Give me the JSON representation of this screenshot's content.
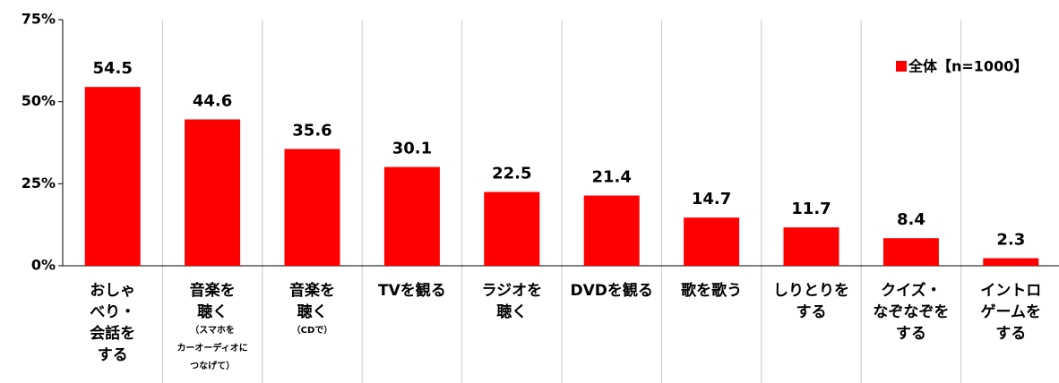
{
  "chart_data": {
    "type": "bar",
    "categories": [
      [
        "おしゃ",
        "べり・",
        "会話を",
        "する"
      ],
      [
        "音楽を",
        "聴く"
      ],
      [
        "音楽を",
        "聴く"
      ],
      [
        "TVを観る"
      ],
      [
        "ラジオを",
        "聴く"
      ],
      [
        "DVDを観る"
      ],
      [
        "歌を歌う"
      ],
      [
        "しりとりを",
        "する"
      ],
      [
        "クイズ・",
        "なぞなぞを",
        "する"
      ],
      [
        "イントロ",
        "ゲームを",
        "する"
      ]
    ],
    "category_notes": [
      null,
      [
        "（スマホを",
        "カーオーディオに",
        "つなげて）"
      ],
      [
        "（CDで）"
      ],
      null,
      null,
      null,
      null,
      null,
      null,
      null
    ],
    "series": [
      {
        "name": "全体【n=1000】",
        "color": "#ff0000",
        "values": [
          54.5,
          44.6,
          35.6,
          30.1,
          22.5,
          21.4,
          14.7,
          11.7,
          8.4,
          2.3
        ]
      }
    ],
    "ylim": [
      0,
      75
    ],
    "yticks": [
      {
        "value": 0,
        "label": "0%"
      },
      {
        "value": 25,
        "label": "25%"
      },
      {
        "value": 50,
        "label": "50%"
      },
      {
        "value": 75,
        "label": "75%"
      }
    ],
    "legend": "top-right"
  }
}
